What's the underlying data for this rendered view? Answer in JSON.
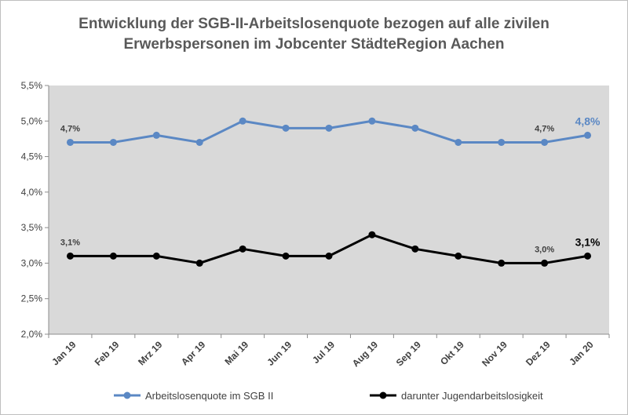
{
  "chart_data": {
    "type": "line",
    "title_lines": [
      "Entwicklung der SGB-II-Arbeitslosenquote bezogen auf alle zivilen",
      "Erwerbspersonen im Jobcenter StädteRegion Aachen"
    ],
    "categories": [
      "Jan 19",
      "Feb 19",
      "Mrz 19",
      "Apr 19",
      "Mai 19",
      "Jun 19",
      "Jul 19",
      "Aug 19",
      "Sep 19",
      "Okt 19",
      "Nov 19",
      "Dez 19",
      "Jan 20"
    ],
    "y_ticks": [
      "2,0%",
      "2,5%",
      "3,0%",
      "3,5%",
      "4,0%",
      "4,5%",
      "5,0%",
      "5,5%"
    ],
    "ylim": [
      2.0,
      5.5
    ],
    "grid": false,
    "legend_position": "bottom",
    "plot_background": "#d9d9d9",
    "series": [
      {
        "name": "Arbeitslosenquote im SGB II",
        "color": "#5b88c4",
        "values": [
          4.7,
          4.7,
          4.8,
          4.7,
          5.0,
          4.9,
          4.9,
          5.0,
          4.9,
          4.7,
          4.7,
          4.7,
          4.8
        ],
        "data_labels": [
          {
            "index": 0,
            "text": "4,7%",
            "size": "small"
          },
          {
            "index": 11,
            "text": "4,7%",
            "size": "small"
          },
          {
            "index": 12,
            "text": "4,8%",
            "size": "big"
          }
        ]
      },
      {
        "name": "darunter Jugendarbeitslosigkeit",
        "color": "#000000",
        "values": [
          3.1,
          3.1,
          3.1,
          3.0,
          3.2,
          3.1,
          3.1,
          3.4,
          3.2,
          3.1,
          3.0,
          3.0,
          3.1
        ],
        "data_labels": [
          {
            "index": 0,
            "text": "3,1%",
            "size": "small"
          },
          {
            "index": 11,
            "text": "3,0%",
            "size": "small"
          },
          {
            "index": 12,
            "text": "3,1%",
            "size": "big"
          }
        ]
      }
    ]
  }
}
